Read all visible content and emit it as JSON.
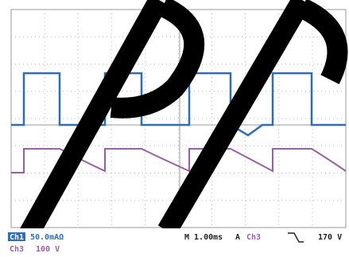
{
  "status_bar": {
    "ch1_label": "Ch1",
    "ch1_scale": "50.0mAΩ",
    "ch3_label": "Ch3",
    "ch3_scale": "100 V",
    "timebase": "M 1.00ms",
    "trigger_mode": "A",
    "trigger_source": "Ch3",
    "trigger_level": "170 V"
  }
}
